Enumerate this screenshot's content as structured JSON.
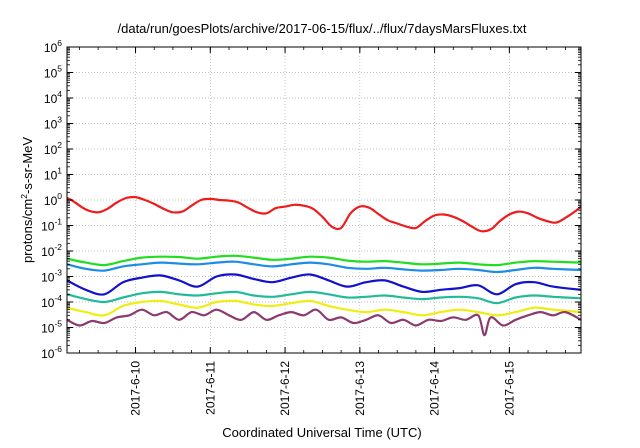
{
  "chart_data": {
    "type": "line",
    "title": "/data/run/goesPlots/archive/2017-06-15/flux/../flux/7daysMarsFluxes.txt",
    "xlabel": "Coordinated Universal Time (UTC)",
    "ylabel": {
      "pre": "protons/cm",
      "sup": "2",
      "post": "-s-sr-MeV"
    },
    "y_scale": "log",
    "ylim_exponents": [
      -6,
      6
    ],
    "y_tick_exponents": [
      -6,
      -5,
      -4,
      -3,
      -2,
      -1,
      0,
      1,
      2,
      3,
      4,
      5,
      6
    ],
    "y_tick_base": "10",
    "xlim": [
      "2017-06-09 02:00",
      "2017-06-15 23:00"
    ],
    "x_tick_labels": [
      "2017-6-10",
      "2017-6-11",
      "2017-6-12",
      "2017-6-13",
      "2017-6-14",
      "2017-6-15"
    ],
    "x_tick_dates": [
      "2017-06-10",
      "2017-06-11",
      "2017-06-12",
      "2017-06-13",
      "2017-06-14",
      "2017-06-15"
    ],
    "grid": true,
    "series": [
      {
        "color": "#ee1c1c",
        "x": [
          "2017-06-09 02:00",
          "2017-06-09 04:00",
          "2017-06-09 07:00",
          "2017-06-09 09:00",
          "2017-06-09 12:00",
          "2017-06-09 15:00",
          "2017-06-09 18:00",
          "2017-06-09 21:00",
          "2017-06-10 00:00",
          "2017-06-10 03:00",
          "2017-06-10 06:00",
          "2017-06-10 09:00",
          "2017-06-10 12:00",
          "2017-06-10 15:00",
          "2017-06-10 18:00",
          "2017-06-10 21:00",
          "2017-06-11 00:00",
          "2017-06-11 03:00",
          "2017-06-11 06:00",
          "2017-06-11 09:00",
          "2017-06-11 12:00",
          "2017-06-11 15:00",
          "2017-06-11 18:00",
          "2017-06-11 21:00",
          "2017-06-12 00:00",
          "2017-06-12 03:00",
          "2017-06-12 06:00",
          "2017-06-12 09:00",
          "2017-06-12 12:00",
          "2017-06-12 15:00",
          "2017-06-12 18:00",
          "2017-06-12 21:00",
          "2017-06-13 00:00",
          "2017-06-13 03:00",
          "2017-06-13 06:00",
          "2017-06-13 09:00",
          "2017-06-13 12:00",
          "2017-06-13 15:00",
          "2017-06-13 18:00",
          "2017-06-13 21:00",
          "2017-06-14 00:00",
          "2017-06-14 03:00",
          "2017-06-14 06:00",
          "2017-06-14 09:00",
          "2017-06-14 12:00",
          "2017-06-14 15:00",
          "2017-06-14 18:00",
          "2017-06-14 21:00",
          "2017-06-15 00:00",
          "2017-06-15 03:00",
          "2017-06-15 06:00",
          "2017-06-15 09:00",
          "2017-06-15 12:00",
          "2017-06-15 15:00",
          "2017-06-15 18:00",
          "2017-06-15 21:00",
          "2017-06-15 23:00"
        ],
        "y": [
          1.2,
          0.9,
          0.5,
          0.38,
          0.33,
          0.45,
          0.8,
          1.2,
          1.3,
          1.0,
          0.7,
          0.45,
          0.33,
          0.35,
          0.6,
          1.0,
          1.1,
          1.0,
          0.95,
          0.8,
          0.5,
          0.33,
          0.3,
          0.48,
          0.55,
          0.65,
          0.6,
          0.45,
          0.22,
          0.09,
          0.08,
          0.3,
          0.55,
          0.5,
          0.28,
          0.16,
          0.12,
          0.09,
          0.08,
          0.15,
          0.25,
          0.27,
          0.22,
          0.15,
          0.09,
          0.06,
          0.07,
          0.15,
          0.27,
          0.35,
          0.3,
          0.2,
          0.15,
          0.13,
          0.2,
          0.35,
          0.55
        ]
      },
      {
        "color": "#22dd22",
        "x": [
          "2017-06-09 02:00",
          "2017-06-09 08:00",
          "2017-06-09 14:00",
          "2017-06-09 20:00",
          "2017-06-10 02:00",
          "2017-06-10 08:00",
          "2017-06-10 14:00",
          "2017-06-10 20:00",
          "2017-06-11 02:00",
          "2017-06-11 08:00",
          "2017-06-11 14:00",
          "2017-06-11 20:00",
          "2017-06-12 02:00",
          "2017-06-12 08:00",
          "2017-06-12 14:00",
          "2017-06-12 20:00",
          "2017-06-13 02:00",
          "2017-06-13 08:00",
          "2017-06-13 14:00",
          "2017-06-13 20:00",
          "2017-06-14 02:00",
          "2017-06-14 08:00",
          "2017-06-14 14:00",
          "2017-06-14 20:00",
          "2017-06-15 02:00",
          "2017-06-15 08:00",
          "2017-06-15 14:00",
          "2017-06-15 23:00"
        ],
        "y": [
          0.005,
          0.0035,
          0.0028,
          0.004,
          0.0055,
          0.006,
          0.0058,
          0.005,
          0.006,
          0.0065,
          0.0055,
          0.0045,
          0.005,
          0.006,
          0.0055,
          0.0042,
          0.0038,
          0.004,
          0.0035,
          0.003,
          0.0032,
          0.0035,
          0.003,
          0.0028,
          0.0035,
          0.004,
          0.0038,
          0.0035
        ]
      },
      {
        "color": "#1e8ce6",
        "x": [
          "2017-06-09 02:00",
          "2017-06-09 08:00",
          "2017-06-09 14:00",
          "2017-06-09 20:00",
          "2017-06-10 02:00",
          "2017-06-10 08:00",
          "2017-06-10 14:00",
          "2017-06-10 20:00",
          "2017-06-11 02:00",
          "2017-06-11 08:00",
          "2017-06-11 14:00",
          "2017-06-11 20:00",
          "2017-06-12 02:00",
          "2017-06-12 08:00",
          "2017-06-12 14:00",
          "2017-06-12 20:00",
          "2017-06-13 02:00",
          "2017-06-13 08:00",
          "2017-06-13 14:00",
          "2017-06-13 20:00",
          "2017-06-14 02:00",
          "2017-06-14 08:00",
          "2017-06-14 14:00",
          "2017-06-14 20:00",
          "2017-06-15 02:00",
          "2017-06-15 08:00",
          "2017-06-15 14:00",
          "2017-06-15 23:00"
        ],
        "y": [
          0.003,
          0.002,
          0.0017,
          0.0025,
          0.003,
          0.0035,
          0.0032,
          0.003,
          0.0035,
          0.0038,
          0.003,
          0.0025,
          0.003,
          0.0035,
          0.003,
          0.0022,
          0.002,
          0.0022,
          0.0019,
          0.0017,
          0.0018,
          0.002,
          0.0018,
          0.0015,
          0.0018,
          0.0022,
          0.002,
          0.0018
        ]
      },
      {
        "color": "#1212cc",
        "x": [
          "2017-06-09 02:00",
          "2017-06-09 08:00",
          "2017-06-09 14:00",
          "2017-06-09 20:00",
          "2017-06-10 02:00",
          "2017-06-10 08:00",
          "2017-06-10 14:00",
          "2017-06-10 20:00",
          "2017-06-11 02:00",
          "2017-06-11 08:00",
          "2017-06-11 14:00",
          "2017-06-11 20:00",
          "2017-06-12 02:00",
          "2017-06-12 08:00",
          "2017-06-12 14:00",
          "2017-06-12 20:00",
          "2017-06-13 02:00",
          "2017-06-13 08:00",
          "2017-06-13 14:00",
          "2017-06-13 20:00",
          "2017-06-14 02:00",
          "2017-06-14 08:00",
          "2017-06-14 14:00",
          "2017-06-14 20:00",
          "2017-06-15 02:00",
          "2017-06-15 08:00",
          "2017-06-15 14:00",
          "2017-06-15 23:00"
        ],
        "y": [
          0.0007,
          0.0003,
          0.0002,
          0.0006,
          0.0009,
          0.0011,
          0.0007,
          0.0004,
          0.001,
          0.0012,
          0.0008,
          0.0006,
          0.0009,
          0.0012,
          0.0007,
          0.0004,
          0.0006,
          0.0007,
          0.0004,
          0.00025,
          0.0003,
          0.00035,
          0.00045,
          0.0002,
          0.0005,
          0.0006,
          0.0004,
          0.0003
        ]
      },
      {
        "color": "#22bb99",
        "x": [
          "2017-06-09 02:00",
          "2017-06-09 08:00",
          "2017-06-09 14:00",
          "2017-06-09 20:00",
          "2017-06-10 02:00",
          "2017-06-10 08:00",
          "2017-06-10 14:00",
          "2017-06-10 20:00",
          "2017-06-11 02:00",
          "2017-06-11 08:00",
          "2017-06-11 14:00",
          "2017-06-11 20:00",
          "2017-06-12 02:00",
          "2017-06-12 08:00",
          "2017-06-12 14:00",
          "2017-06-12 20:00",
          "2017-06-13 02:00",
          "2017-06-13 08:00",
          "2017-06-13 14:00",
          "2017-06-13 20:00",
          "2017-06-14 02:00",
          "2017-06-14 08:00",
          "2017-06-14 14:00",
          "2017-06-14 20:00",
          "2017-06-15 02:00",
          "2017-06-15 08:00",
          "2017-06-15 14:00",
          "2017-06-15 23:00"
        ],
        "y": [
          0.0002,
          0.00013,
          0.0001,
          0.00015,
          0.00022,
          0.00025,
          0.0002,
          0.00018,
          0.00022,
          0.00025,
          0.00018,
          0.00016,
          0.0002,
          0.00025,
          0.0002,
          0.00015,
          0.00016,
          0.00018,
          0.00015,
          0.00013,
          0.00015,
          0.00016,
          0.00014,
          9e-05,
          0.00015,
          0.00018,
          0.00016,
          0.00014
        ]
      },
      {
        "color": "#eeee11",
        "x": [
          "2017-06-09 02:00",
          "2017-06-09 08:00",
          "2017-06-09 14:00",
          "2017-06-09 20:00",
          "2017-06-10 02:00",
          "2017-06-10 08:00",
          "2017-06-10 14:00",
          "2017-06-10 20:00",
          "2017-06-11 02:00",
          "2017-06-11 08:00",
          "2017-06-11 14:00",
          "2017-06-11 20:00",
          "2017-06-12 02:00",
          "2017-06-12 08:00",
          "2017-06-12 14:00",
          "2017-06-12 20:00",
          "2017-06-13 02:00",
          "2017-06-13 08:00",
          "2017-06-13 14:00",
          "2017-06-13 20:00",
          "2017-06-14 02:00",
          "2017-06-14 08:00",
          "2017-06-14 14:00",
          "2017-06-14 20:00",
          "2017-06-15 02:00",
          "2017-06-15 08:00",
          "2017-06-15 14:00",
          "2017-06-15 23:00"
        ],
        "y": [
          6e-05,
          4e-05,
          3e-05,
          7e-05,
          0.0001,
          0.00011,
          8e-05,
          6e-05,
          0.0001,
          0.00011,
          8e-05,
          7e-05,
          9e-05,
          0.00011,
          7e-05,
          5e-05,
          4e-05,
          5e-05,
          4e-05,
          3e-05,
          4e-05,
          5e-05,
          4e-05,
          3e-05,
          4e-05,
          6e-05,
          5e-05,
          4e-05
        ]
      },
      {
        "color": "#8b3a6e",
        "x": [
          "2017-06-09 02:00",
          "2017-06-09 06:00",
          "2017-06-09 10:00",
          "2017-06-09 14:00",
          "2017-06-09 18:00",
          "2017-06-09 22:00",
          "2017-06-10 02:00",
          "2017-06-10 06:00",
          "2017-06-10 10:00",
          "2017-06-10 14:00",
          "2017-06-10 18:00",
          "2017-06-10 22:00",
          "2017-06-11 02:00",
          "2017-06-11 06:00",
          "2017-06-11 10:00",
          "2017-06-11 14:00",
          "2017-06-11 18:00",
          "2017-06-11 22:00",
          "2017-06-12 02:00",
          "2017-06-12 06:00",
          "2017-06-12 10:00",
          "2017-06-12 14:00",
          "2017-06-12 18:00",
          "2017-06-12 22:00",
          "2017-06-13 02:00",
          "2017-06-13 06:00",
          "2017-06-13 10:00",
          "2017-06-13 14:00",
          "2017-06-13 18:00",
          "2017-06-13 22:00",
          "2017-06-14 02:00",
          "2017-06-14 06:00",
          "2017-06-14 10:00",
          "2017-06-14 14:00",
          "2017-06-14 16:00",
          "2017-06-14 18:00",
          "2017-06-14 22:00",
          "2017-06-15 02:00",
          "2017-06-15 06:00",
          "2017-06-15 10:00",
          "2017-06-15 14:00",
          "2017-06-15 18:00",
          "2017-06-15 23:00"
        ],
        "y": [
          2e-05,
          1.2e-05,
          1.8e-05,
          1.5e-05,
          2.5e-05,
          3e-05,
          5e-05,
          3e-05,
          4e-05,
          2e-05,
          4e-05,
          3e-05,
          5e-05,
          3e-05,
          2e-05,
          4e-05,
          2e-05,
          3e-05,
          4e-05,
          3e-05,
          5e-05,
          2e-05,
          2.5e-05,
          1.5e-05,
          2e-05,
          3e-05,
          1.5e-05,
          2e-05,
          1.2e-05,
          2e-05,
          1.8e-05,
          2.5e-05,
          2e-05,
          3e-05,
          5e-06,
          2.5e-05,
          1.2e-05,
          2e-05,
          3e-05,
          4e-05,
          3e-05,
          4e-05,
          2e-05
        ]
      }
    ]
  }
}
